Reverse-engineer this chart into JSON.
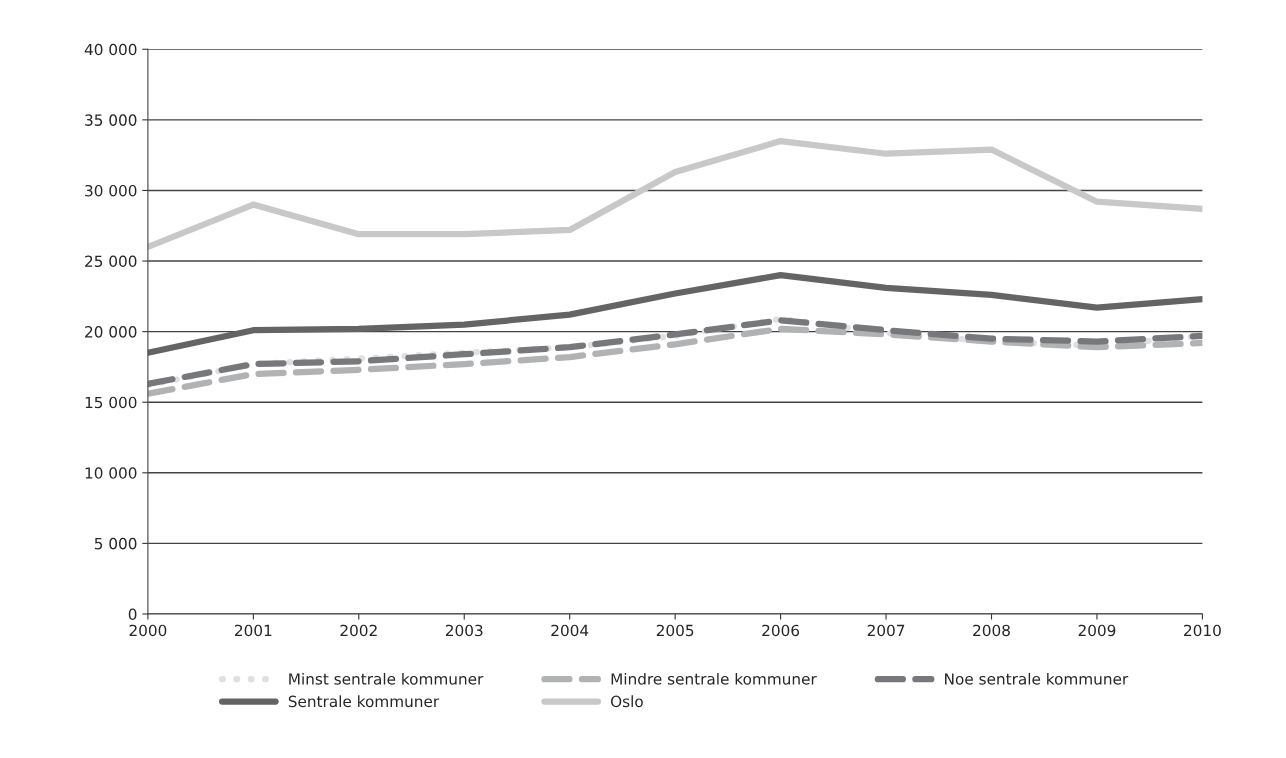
{
  "chart_data": {
    "type": "line",
    "x": [
      "2000",
      "2001",
      "2002",
      "2003",
      "2004",
      "2005",
      "2006",
      "2007",
      "2008",
      "2009",
      "2010"
    ],
    "xlim": [
      "2000",
      "2010"
    ],
    "xticks": [
      {
        "value": "2000",
        "label": "2000"
      },
      {
        "value": "2001",
        "label": "2001"
      },
      {
        "value": "2002",
        "label": "2002"
      },
      {
        "value": "2003",
        "label": "2003"
      },
      {
        "value": "2004",
        "label": "2004"
      },
      {
        "value": "2005",
        "label": "2005"
      },
      {
        "value": "2006",
        "label": "2006"
      },
      {
        "value": "2007",
        "label": "2007"
      },
      {
        "value": "2008",
        "label": "2008"
      },
      {
        "value": "2009",
        "label": "2009"
      },
      {
        "value": "2010",
        "label": "2010"
      }
    ],
    "ylim": [
      0,
      40000
    ],
    "yticks": [
      0,
      {
        "value": 5000,
        "label": "5 000"
      },
      {
        "value": 10000,
        "label": "10 000"
      },
      {
        "value": 15000,
        "label": "15 000"
      },
      {
        "value": 20000,
        "label": "20 000"
      },
      {
        "value": 25000,
        "label": "25 000"
      },
      {
        "value": 30000,
        "label": "30 000"
      },
      {
        "value": 35000,
        "label": "35 000"
      },
      {
        "value": 40000,
        "label": "40 000"
      }
    ],
    "grid": "y",
    "legend": "bottom",
    "series": [
      {
        "name": "Minst sentrale kommuner",
        "color": "#e0e0e0",
        "line_style": "dotted",
        "values": [
          16200,
          17700,
          18100,
          18500,
          18900,
          19700,
          20900,
          19900,
          19300,
          19000,
          19700
        ]
      },
      {
        "name": "Mindre sentrale kommuner",
        "color": "#b1b2b4",
        "line_style": "dashed",
        "values": [
          15600,
          17000,
          17300,
          17700,
          18200,
          19100,
          20200,
          19800,
          19300,
          18900,
          19200
        ]
      },
      {
        "name": "Noe sentrale kommuner",
        "color": "#77787b",
        "line_style": "dashed",
        "values": [
          16300,
          17700,
          17900,
          18400,
          18900,
          19800,
          20800,
          20100,
          19500,
          19300,
          19700
        ]
      },
      {
        "name": "Sentrale kommuner",
        "color": "#636466",
        "line_style": "solid",
        "values": [
          18500,
          20100,
          20200,
          20500,
          21200,
          22700,
          24000,
          23100,
          22600,
          21700,
          22300
        ]
      },
      {
        "name": "Oslo",
        "color": "#c8c8c9",
        "line_style": "solid",
        "values": [
          26000,
          29000,
          26900,
          26900,
          27200,
          31300,
          33500,
          32600,
          32900,
          29200,
          28700
        ]
      }
    ]
  }
}
